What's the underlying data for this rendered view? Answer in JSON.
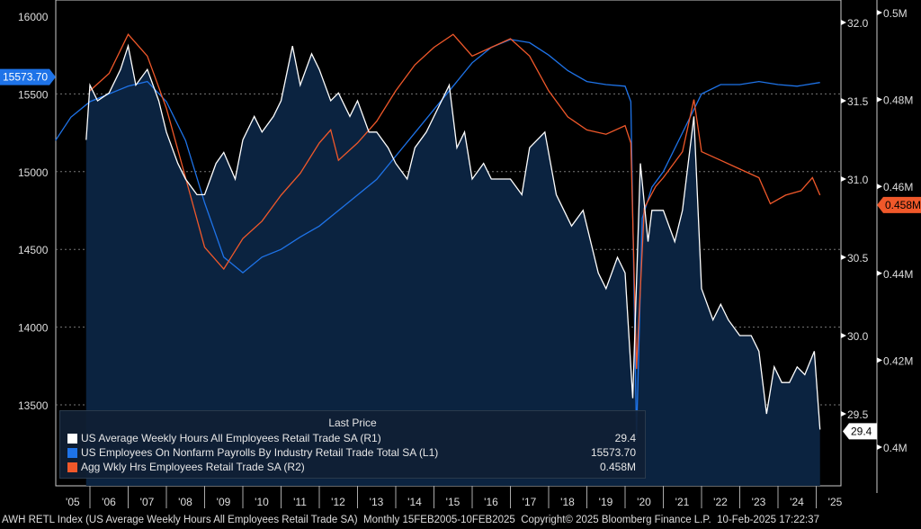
{
  "chart_data": {
    "type": "line",
    "title": "",
    "x_range": [
      2005.1,
      2025.12
    ],
    "x_tick_labels": [
      "'05",
      "'06",
      "'07",
      "'08",
      "'09",
      "'10",
      "'11",
      "'12",
      "'13",
      "'14",
      "'15",
      "'16",
      "'17",
      "'18",
      "'19",
      "'20",
      "'21",
      "'22",
      "'23",
      "'24",
      "'25"
    ],
    "axes": {
      "L1": {
        "range": [
          13200,
          16100
        ],
        "ticks": [
          "16000",
          "15500",
          "15000",
          "14500",
          "14000",
          "13500"
        ],
        "tick_values": [
          16000,
          15500,
          15000,
          14500,
          14000,
          13500
        ]
      },
      "R1": {
        "range": [
          29.3,
          32.08
        ],
        "ticks": [
          "32.0",
          "31.5",
          "31.0",
          "30.5",
          "30.0",
          "29.5"
        ],
        "tick_values": [
          32.0,
          31.5,
          31.0,
          30.5,
          30.0,
          29.5
        ]
      },
      "R2": {
        "range": [
          0.397,
          0.503
        ],
        "ticks": [
          "0.5M",
          "0.48M",
          "0.46M",
          "0.44M",
          "0.42M",
          "0.4M"
        ],
        "tick_values": [
          0.5,
          0.48,
          0.46,
          0.44,
          0.42,
          0.4
        ]
      }
    },
    "series": [
      {
        "name": "US Average Weekly Hours All Employees Retail Trade SA",
        "axis": "R1",
        "color": "#ffffff",
        "filled": true,
        "x": [
          2005.9,
          2006.0,
          2006.2,
          2006.5,
          2006.8,
          2007.0,
          2007.2,
          2007.5,
          2007.8,
          2008.0,
          2008.3,
          2008.5,
          2008.8,
          2009.0,
          2009.3,
          2009.5,
          2009.8,
          2010.0,
          2010.3,
          2010.5,
          2010.8,
          2011.0,
          2011.3,
          2011.5,
          2011.8,
          2012.0,
          2012.3,
          2012.5,
          2012.8,
          2013.0,
          2013.3,
          2013.5,
          2013.8,
          2014.0,
          2014.3,
          2014.5,
          2014.8,
          2015.0,
          2015.4,
          2015.6,
          2015.8,
          2016.0,
          2016.3,
          2016.5,
          2016.8,
          2017.0,
          2017.3,
          2017.5,
          2017.9,
          2018.2,
          2018.4,
          2018.6,
          2018.9,
          2019.0,
          2019.3,
          2019.5,
          2019.8,
          2020.0,
          2020.2,
          2020.4,
          2020.6,
          2020.7,
          2021.0,
          2021.3,
          2021.5,
          2021.8,
          2022.0,
          2022.3,
          2022.5,
          2022.7,
          2023.0,
          2023.3,
          2023.5,
          2023.7,
          2023.9,
          2024.1,
          2024.3,
          2024.5,
          2024.7,
          2024.95,
          2025.1
        ],
        "y": [
          31.25,
          31.6,
          31.5,
          31.55,
          31.7,
          31.85,
          31.6,
          31.7,
          31.5,
          31.3,
          31.1,
          31.0,
          30.9,
          30.9,
          31.1,
          31.17,
          31.0,
          31.25,
          31.4,
          31.3,
          31.4,
          31.5,
          31.85,
          31.6,
          31.8,
          31.7,
          31.5,
          31.55,
          31.4,
          31.5,
          31.3,
          31.3,
          31.2,
          31.1,
          31.0,
          31.2,
          31.3,
          31.4,
          31.6,
          31.2,
          31.3,
          31.0,
          31.1,
          31.0,
          31.0,
          31.0,
          30.9,
          31.2,
          31.3,
          30.9,
          30.8,
          30.7,
          30.8,
          30.7,
          30.4,
          30.3,
          30.5,
          30.4,
          29.6,
          31.1,
          30.6,
          30.8,
          30.8,
          30.6,
          30.8,
          31.4,
          30.3,
          30.1,
          30.2,
          30.1,
          30.0,
          30.0,
          29.9,
          29.5,
          29.8,
          29.7,
          29.7,
          29.8,
          29.75,
          29.9,
          29.4
        ],
        "last": "29.4",
        "legend_tag": "(R1)"
      },
      {
        "name": "US Employees On Nonfarm Payrolls By Industry Retail Trade Total SA",
        "axis": "L1",
        "color": "#1e73e8",
        "x": [
          2005.1,
          2005.5,
          2006.0,
          2006.5,
          2007.0,
          2007.5,
          2008.0,
          2008.5,
          2009.0,
          2009.5,
          2010.0,
          2010.5,
          2011.0,
          2011.5,
          2012.0,
          2012.5,
          2013.0,
          2013.5,
          2014.0,
          2014.5,
          2015.0,
          2015.5,
          2016.0,
          2016.5,
          2017.0,
          2017.5,
          2018.0,
          2018.5,
          2019.0,
          2019.5,
          2020.0,
          2020.15,
          2020.3,
          2020.45,
          2020.7,
          2021.0,
          2021.5,
          2022.0,
          2022.5,
          2023.0,
          2023.5,
          2024.0,
          2024.5,
          2025.1
        ],
        "y": [
          15200,
          15350,
          15450,
          15500,
          15550,
          15580,
          15450,
          15200,
          14800,
          14450,
          14350,
          14450,
          14500,
          14580,
          14650,
          14750,
          14850,
          14950,
          15100,
          15250,
          15400,
          15550,
          15700,
          15800,
          15850,
          15830,
          15750,
          15650,
          15580,
          15560,
          15550,
          15450,
          13300,
          14700,
          14900,
          15000,
          15250,
          15500,
          15560,
          15560,
          15580,
          15560,
          15550,
          15573.7
        ],
        "last": "15573.70",
        "legend_tag": "(L1)"
      },
      {
        "name": "Agg Wkly Hrs Employees Retail Trade SA",
        "axis": "R2",
        "color": "#f0582a",
        "x": [
          2006.0,
          2006.5,
          2007.0,
          2007.5,
          2008.0,
          2008.5,
          2009.0,
          2009.5,
          2010.0,
          2010.5,
          2011.0,
          2011.5,
          2012.0,
          2012.3,
          2012.5,
          2013.0,
          2013.5,
          2014.0,
          2014.5,
          2015.0,
          2015.5,
          2016.0,
          2016.5,
          2017.0,
          2017.5,
          2018.0,
          2018.5,
          2019.0,
          2019.5,
          2020.0,
          2020.15,
          2020.3,
          2020.5,
          2020.8,
          2021.0,
          2021.5,
          2021.8,
          2022.0,
          2022.5,
          2023.0,
          2023.5,
          2023.8,
          2024.2,
          2024.6,
          2024.9,
          2025.1
        ],
        "y": [
          0.482,
          0.486,
          0.495,
          0.49,
          0.478,
          0.462,
          0.446,
          0.441,
          0.448,
          0.452,
          0.458,
          0.463,
          0.47,
          0.473,
          0.466,
          0.47,
          0.475,
          0.482,
          0.488,
          0.492,
          0.495,
          0.49,
          0.492,
          0.494,
          0.49,
          0.482,
          0.476,
          0.473,
          0.472,
          0.474,
          0.47,
          0.418,
          0.455,
          0.46,
          0.462,
          0.468,
          0.48,
          0.468,
          0.466,
          0.464,
          0.462,
          0.456,
          0.458,
          0.459,
          0.462,
          0.458
        ],
        "last": "0.458M",
        "legend_tag": "(R2)"
      }
    ],
    "legend": {
      "header": "Last Price",
      "placement": "bottom-left"
    },
    "grid": "dotted-horizontal"
  },
  "footer": {
    "ticker": "AWH RETL Index (US Average Weekly Hours All Employees Retail Trade SA)",
    "range": "Monthly 15FEB2005-10FEB2025",
    "copyright": "Copyright© 2025 Bloomberg Finance L.P.",
    "timestamp": "10-Feb-2025 17:22:37"
  },
  "legend_items": [
    {
      "label": "US Average Weekly Hours All Employees Retail Trade SA  (R1)",
      "value": "29.4",
      "color": "#ffffff"
    },
    {
      "label": "US Employees On Nonfarm Payrolls By Industry Retail Trade Total SA  (L1)",
      "value": "15573.70",
      "color": "#1e73e8"
    },
    {
      "label": "Agg Wkly Hrs Employees Retail Trade SA  (R2)",
      "value": "0.458M",
      "color": "#f0582a"
    }
  ],
  "legend_header": "Last Price"
}
